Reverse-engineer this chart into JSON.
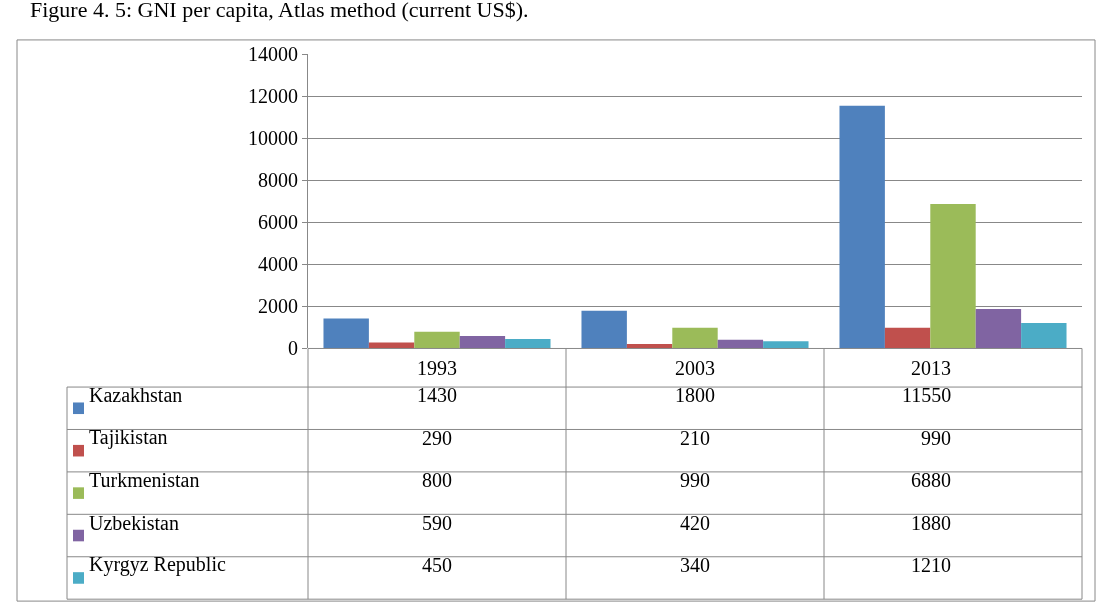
{
  "chart_data": {
    "type": "bar",
    "title": "Figure 4. 5: GNI per capita, Atlas method (current US$).",
    "categories": [
      "1993",
      "2003",
      "2013"
    ],
    "series": [
      {
        "name": "Kazakhstan",
        "color": "#4f81bd",
        "values": [
          1430,
          1800,
          11550
        ]
      },
      {
        "name": "Tajikistan",
        "color": "#c0504d",
        "values": [
          290,
          210,
          990
        ]
      },
      {
        "name": "Turkmenistan",
        "color": "#9bbb59",
        "values": [
          800,
          990,
          6880
        ]
      },
      {
        "name": "Uzbekistan",
        "color": "#8064a2",
        "values": [
          590,
          420,
          1880
        ]
      },
      {
        "name": "Kyrgyz Republic",
        "color": "#4bacc6",
        "values": [
          450,
          340,
          1210
        ]
      }
    ],
    "ylim": [
      0,
      14000
    ],
    "yticks": [
      0,
      2000,
      4000,
      6000,
      8000,
      10000,
      12000,
      14000
    ],
    "grid": "y",
    "data_labels": true,
    "legend": "bottom"
  }
}
